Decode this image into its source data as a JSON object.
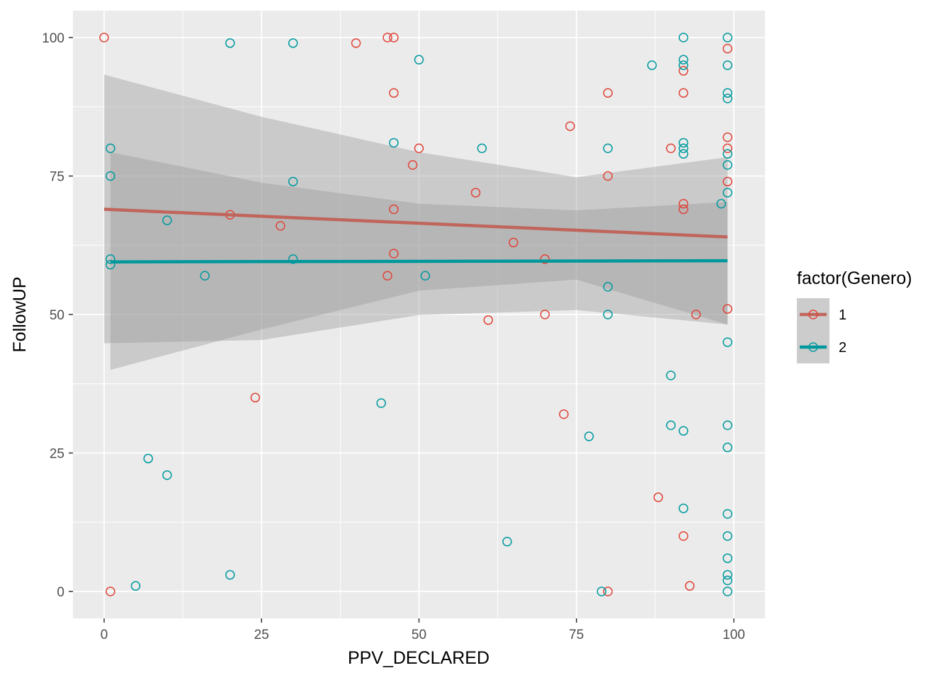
{
  "chart_data": {
    "type": "scatter",
    "xlabel": "PPV_DECLARED",
    "ylabel": "FollowUP",
    "xlim": [
      -5,
      104
    ],
    "ylim": [
      -5,
      105
    ],
    "x_ticks": [
      "0",
      "25",
      "50",
      "75",
      "100"
    ],
    "y_ticks": [
      "0",
      "25",
      "50",
      "75",
      "100"
    ],
    "grid": true,
    "legend": {
      "title": "factor(Genero)",
      "placement": "right",
      "entries": [
        "1",
        "2"
      ]
    },
    "colors": {
      "1": "#F8766D",
      "2": "#00BFC4",
      "point_1": "#E0453A",
      "point_2": "#009A9E",
      "line_1": "#C0655C",
      "line_2": "#00989C"
    },
    "series": [
      {
        "name": "1",
        "points": [
          [
            0,
            100
          ],
          [
            1,
            0
          ],
          [
            20,
            68
          ],
          [
            24,
            35
          ],
          [
            28,
            66
          ],
          [
            40,
            99
          ],
          [
            45,
            100
          ],
          [
            46,
            100
          ],
          [
            46,
            90
          ],
          [
            45,
            57
          ],
          [
            46,
            69
          ],
          [
            46,
            61
          ],
          [
            49,
            77
          ],
          [
            50,
            80
          ],
          [
            59,
            72
          ],
          [
            61,
            49
          ],
          [
            65,
            63
          ],
          [
            70,
            60
          ],
          [
            70,
            50
          ],
          [
            73,
            32
          ],
          [
            74,
            84
          ],
          [
            80,
            90
          ],
          [
            80,
            75
          ],
          [
            80,
            0
          ],
          [
            88,
            17
          ],
          [
            90,
            80
          ],
          [
            92,
            94
          ],
          [
            92,
            90
          ],
          [
            92,
            70
          ],
          [
            92,
            69
          ],
          [
            92,
            10
          ],
          [
            93,
            1
          ],
          [
            94,
            50
          ],
          [
            99,
            98
          ],
          [
            99,
            82
          ],
          [
            99,
            80
          ],
          [
            99,
            74
          ],
          [
            99,
            51
          ]
        ],
        "fit": [
          [
            0,
            69
          ],
          [
            99,
            64
          ]
        ],
        "band": {
          "x": [
            0,
            25,
            50,
            75,
            99
          ],
          "lower": [
            44.8,
            45.4,
            49.9,
            50.8,
            48.2
          ],
          "upper": [
            93.3,
            85.7,
            79.3,
            74.8,
            78.4
          ]
        }
      },
      {
        "name": "2",
        "points": [
          [
            1,
            80
          ],
          [
            1,
            75
          ],
          [
            1,
            60
          ],
          [
            1,
            59
          ],
          [
            5,
            1
          ],
          [
            7,
            24
          ],
          [
            10,
            67
          ],
          [
            10,
            21
          ],
          [
            16,
            57
          ],
          [
            20,
            99
          ],
          [
            20,
            3
          ],
          [
            30,
            99
          ],
          [
            30,
            74
          ],
          [
            30,
            60
          ],
          [
            44,
            34
          ],
          [
            46,
            81
          ],
          [
            50,
            96
          ],
          [
            51,
            57
          ],
          [
            60,
            80
          ],
          [
            64,
            9
          ],
          [
            77,
            28
          ],
          [
            79,
            0
          ],
          [
            80,
            80
          ],
          [
            80,
            55
          ],
          [
            80,
            50
          ],
          [
            87,
            95
          ],
          [
            90,
            39
          ],
          [
            90,
            30
          ],
          [
            92,
            100
          ],
          [
            92,
            96
          ],
          [
            92,
            95
          ],
          [
            92,
            81
          ],
          [
            92,
            80
          ],
          [
            92,
            79
          ],
          [
            92,
            29
          ],
          [
            92,
            15
          ],
          [
            98,
            70
          ],
          [
            99,
            100
          ],
          [
            99,
            95
          ],
          [
            99,
            90
          ],
          [
            99,
            89
          ],
          [
            99,
            79
          ],
          [
            99,
            77
          ],
          [
            99,
            72
          ],
          [
            99,
            45
          ],
          [
            99,
            30
          ],
          [
            99,
            26
          ],
          [
            99,
            14
          ],
          [
            99,
            10
          ],
          [
            99,
            6
          ],
          [
            99,
            3
          ],
          [
            99,
            2
          ],
          [
            99,
            0
          ]
        ],
        "fit": [
          [
            1,
            59.5
          ],
          [
            99,
            59.7
          ]
        ],
        "band": {
          "x": [
            1,
            25,
            50,
            75,
            99
          ],
          "lower": [
            40,
            47.3,
            54.3,
            56.3,
            48.2
          ],
          "upper": [
            79.3,
            73.8,
            70,
            68.8,
            70.3
          ]
        }
      }
    ]
  }
}
